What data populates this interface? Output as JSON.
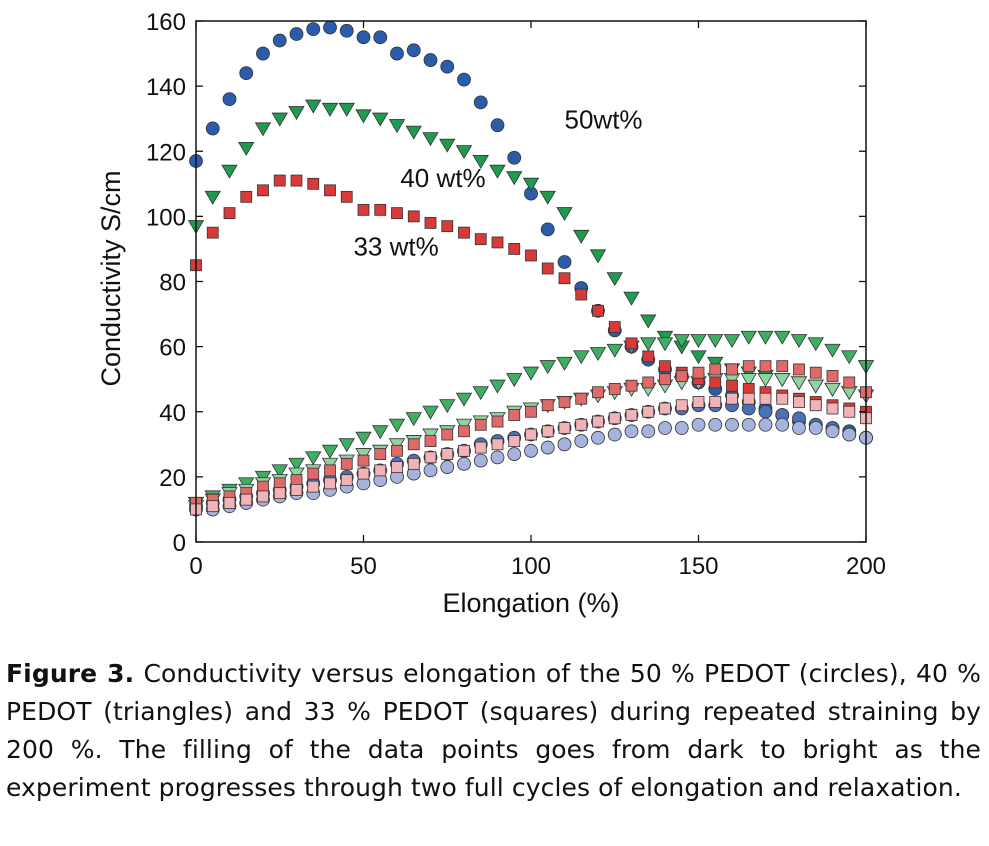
{
  "chart_data": {
    "type": "scatter",
    "xlabel": "Elongation (%)",
    "ylabel": "Conductivity S/cm",
    "xlim": [
      0,
      200
    ],
    "ylim": [
      0,
      160
    ],
    "xticks": [
      0,
      50,
      100,
      150,
      200
    ],
    "yticks": [
      0,
      20,
      40,
      60,
      80,
      100,
      120,
      140,
      160
    ],
    "grid": false,
    "annotations": [
      {
        "text": "50wt%",
        "x": 110,
        "y": 127
      },
      {
        "text": "40 wt%",
        "x": 61,
        "y": 109
      },
      {
        "text": "33 wt%",
        "x": 47,
        "y": 88
      }
    ],
    "series": [
      {
        "marker": "circle",
        "color": "#2b5cab",
        "x": [
          0,
          5,
          10,
          15,
          20,
          25,
          30,
          35,
          40,
          45,
          50,
          55,
          60,
          65,
          70,
          75,
          80,
          85,
          90,
          95,
          100,
          105,
          110,
          115,
          120,
          125,
          130,
          135,
          140,
          145,
          150,
          155,
          160,
          165,
          170,
          175,
          180,
          185,
          190,
          195,
          200
        ],
        "y": [
          117,
          127,
          136,
          144,
          150,
          154,
          156,
          157.5,
          158,
          157,
          155,
          155,
          150,
          151,
          148,
          146,
          142,
          135,
          128,
          118,
          107,
          96,
          86,
          78,
          71,
          65,
          60,
          56,
          53,
          51,
          49,
          47,
          45,
          43,
          41,
          39,
          37,
          36,
          35,
          34,
          32
        ]
      },
      {
        "marker": "circle",
        "color": "#4a70b8",
        "x": [
          0,
          5,
          10,
          15,
          20,
          25,
          30,
          35,
          40,
          45,
          50,
          55,
          60,
          65,
          70,
          75,
          80,
          85,
          90,
          95,
          100,
          105,
          110,
          115,
          120,
          125,
          130,
          135,
          140,
          145,
          150,
          155,
          160,
          165,
          170,
          175,
          180,
          185,
          190,
          195,
          200
        ],
        "y": [
          11,
          12,
          13,
          14,
          15,
          16,
          17,
          18,
          19,
          20,
          21,
          22,
          24,
          25,
          26,
          27,
          28,
          30,
          31,
          32,
          33,
          34,
          35,
          36,
          37,
          38,
          39,
          40,
          41,
          41,
          42,
          42,
          42,
          41,
          40,
          39,
          38,
          36,
          35,
          33,
          32
        ]
      },
      {
        "marker": "circle",
        "color": "#a6b4dd",
        "x": [
          0,
          5,
          10,
          15,
          20,
          25,
          30,
          35,
          40,
          45,
          50,
          55,
          60,
          65,
          70,
          75,
          80,
          85,
          90,
          95,
          100,
          105,
          110,
          115,
          120,
          125,
          130,
          135,
          140,
          145,
          150,
          155,
          160,
          165,
          170,
          175,
          180,
          185,
          190,
          195,
          200
        ],
        "y": [
          10,
          10,
          11,
          12,
          13,
          14,
          15,
          15,
          16,
          17,
          18,
          19,
          20,
          21,
          22,
          23,
          24,
          25,
          26,
          27,
          28,
          29,
          30,
          31,
          32,
          33,
          34,
          34,
          35,
          35,
          36,
          36,
          36,
          36,
          36,
          36,
          35,
          35,
          34,
          33,
          32
        ]
      },
      {
        "marker": "triangle-down",
        "color": "#1f9a4e",
        "x": [
          0,
          5,
          10,
          15,
          20,
          25,
          30,
          35,
          40,
          45,
          50,
          55,
          60,
          65,
          70,
          75,
          80,
          85,
          90,
          95,
          100,
          105,
          110,
          115,
          120,
          125,
          130,
          135,
          140,
          145,
          150,
          155,
          160,
          165,
          170,
          175,
          180,
          185,
          190,
          195,
          200
        ],
        "y": [
          97,
          106,
          114,
          121,
          127,
          130,
          132,
          134,
          133,
          133,
          131,
          130,
          128,
          126,
          124,
          122,
          120,
          117,
          114,
          112,
          110,
          106,
          101,
          94,
          88,
          81,
          75,
          68,
          63,
          60,
          57,
          55,
          53,
          52,
          51,
          50,
          49,
          48,
          47,
          46,
          45
        ]
      },
      {
        "marker": "triangle-down",
        "color": "#3fae63",
        "x": [
          0,
          5,
          10,
          15,
          20,
          25,
          30,
          35,
          40,
          45,
          50,
          55,
          60,
          65,
          70,
          75,
          80,
          85,
          90,
          95,
          100,
          105,
          110,
          115,
          120,
          125,
          130,
          135,
          140,
          145,
          150,
          155,
          160,
          165,
          170,
          175,
          180,
          185,
          190,
          195,
          200
        ],
        "y": [
          12,
          14,
          16,
          18,
          20,
          22,
          24,
          26,
          28,
          30,
          32,
          34,
          36,
          38,
          40,
          42,
          44,
          46,
          48,
          50,
          52,
          54,
          55,
          57,
          58,
          59,
          60,
          61,
          61,
          62,
          62,
          62,
          62,
          63,
          63,
          63,
          62,
          61,
          59,
          57,
          54
        ]
      },
      {
        "marker": "triangle-down",
        "color": "#8fd3a3",
        "x": [
          0,
          5,
          10,
          15,
          20,
          25,
          30,
          35,
          40,
          45,
          50,
          55,
          60,
          65,
          70,
          75,
          80,
          85,
          90,
          95,
          100,
          105,
          110,
          115,
          120,
          125,
          130,
          135,
          140,
          145,
          150,
          155,
          160,
          165,
          170,
          175,
          180,
          185,
          190,
          195,
          200
        ],
        "y": [
          11,
          13,
          15,
          16,
          18,
          19,
          21,
          22,
          24,
          25,
          27,
          28,
          30,
          31,
          33,
          34,
          36,
          37,
          38,
          40,
          41,
          42,
          43,
          44,
          45,
          46,
          47,
          47,
          48,
          49,
          49,
          50,
          50,
          50,
          50,
          50,
          49,
          48,
          47,
          46,
          45
        ]
      },
      {
        "marker": "square",
        "color": "#d83a3a",
        "x": [
          0,
          5,
          10,
          15,
          20,
          25,
          30,
          35,
          40,
          45,
          50,
          55,
          60,
          65,
          70,
          75,
          80,
          85,
          90,
          95,
          100,
          105,
          110,
          115,
          120,
          125,
          130,
          135,
          140,
          145,
          150,
          155,
          160,
          165,
          170,
          175,
          180,
          185,
          190,
          195,
          200
        ],
        "y": [
          85,
          95,
          101,
          106,
          108,
          111,
          111,
          110,
          108,
          106,
          102,
          102,
          101,
          100,
          98,
          97,
          95,
          93,
          92,
          90,
          88,
          84,
          81,
          76,
          71,
          66,
          61,
          57,
          54,
          52,
          50,
          49,
          48,
          47,
          46,
          45,
          44,
          43,
          42,
          41,
          40
        ]
      },
      {
        "marker": "square",
        "color": "#e06a6a",
        "x": [
          0,
          5,
          10,
          15,
          20,
          25,
          30,
          35,
          40,
          45,
          50,
          55,
          60,
          65,
          70,
          75,
          80,
          85,
          90,
          95,
          100,
          105,
          110,
          115,
          120,
          125,
          130,
          135,
          140,
          145,
          150,
          155,
          160,
          165,
          170,
          175,
          180,
          185,
          190,
          195,
          200
        ],
        "y": [
          12,
          13,
          14,
          15,
          17,
          18,
          19,
          21,
          22,
          24,
          25,
          27,
          28,
          30,
          31,
          33,
          34,
          36,
          37,
          39,
          40,
          42,
          43,
          44,
          46,
          47,
          48,
          49,
          50,
          51,
          52,
          53,
          53,
          54,
          54,
          54,
          53,
          52,
          51,
          49,
          46
        ]
      },
      {
        "marker": "square",
        "color": "#f2b3b8",
        "x": [
          0,
          5,
          10,
          15,
          20,
          25,
          30,
          35,
          40,
          45,
          50,
          55,
          60,
          65,
          70,
          75,
          80,
          85,
          90,
          95,
          100,
          105,
          110,
          115,
          120,
          125,
          130,
          135,
          140,
          145,
          150,
          155,
          160,
          165,
          170,
          175,
          180,
          185,
          190,
          195,
          200
        ],
        "y": [
          10,
          11,
          12,
          13,
          14,
          15,
          16,
          17,
          18,
          19,
          21,
          22,
          23,
          24,
          26,
          27,
          28,
          29,
          30,
          31,
          33,
          34,
          35,
          36,
          37,
          38,
          39,
          40,
          41,
          42,
          43,
          43,
          44,
          44,
          44,
          44,
          43,
          42,
          41,
          40,
          38
        ]
      }
    ]
  },
  "caption": {
    "label": "Figure 3.",
    "text": "Conductivity versus elongation of the 50 % PEDOT (circles), 40 % PEDOT (triangles) and 33 % PEDOT (squares) during repeated straining by 200 %. The filling of the data points goes from dark to bright as the experiment progresses through two full cycles of elongation and relaxation."
  }
}
